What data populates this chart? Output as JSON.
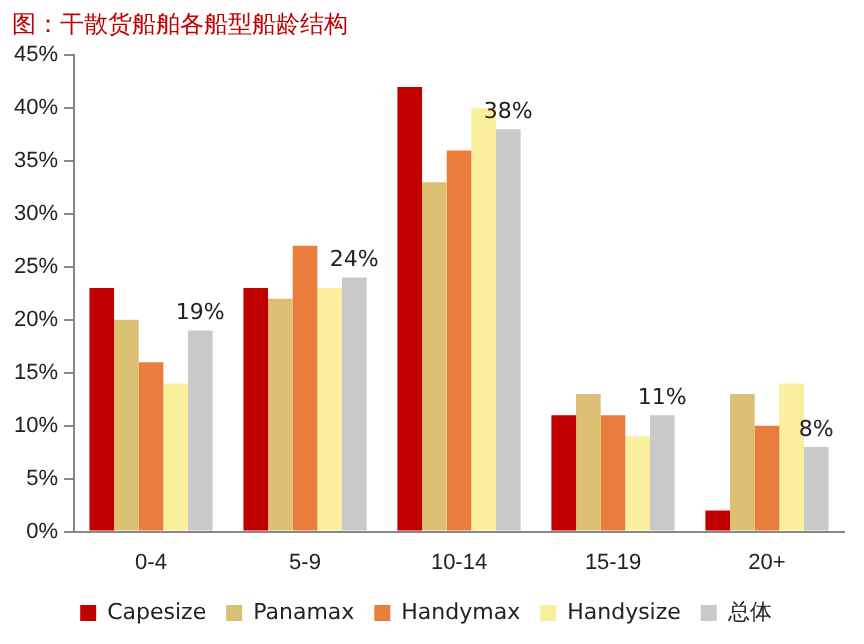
{
  "chart_data": {
    "type": "bar",
    "title": "图：干散货船舶各船型船龄结构",
    "categories": [
      "0-4",
      "5-9",
      "10-14",
      "15-19",
      "20+"
    ],
    "series": [
      {
        "name": "Capesize",
        "color": "#c00000",
        "values": [
          23,
          23,
          42,
          11,
          2
        ]
      },
      {
        "name": "Panamax",
        "color": "#dbbf73",
        "values": [
          20,
          22,
          33,
          13,
          13
        ]
      },
      {
        "name": "Handymax",
        "color": "#ea7d3c",
        "values": [
          16,
          27,
          36,
          11,
          10
        ]
      },
      {
        "name": "Handysize",
        "color": "#f9ef9c",
        "values": [
          14,
          23,
          40,
          9,
          14
        ]
      },
      {
        "name": "总体",
        "color": "#c9c9c9",
        "values": [
          19,
          24,
          38,
          11,
          8
        ],
        "value_labels": [
          "19%",
          "24%",
          "38%",
          "11%",
          "8%"
        ]
      }
    ],
    "ylim": [
      0,
      45
    ],
    "yticks": [
      {
        "value": 0,
        "label": "0%"
      },
      {
        "value": 5,
        "label": "5%"
      },
      {
        "value": 10,
        "label": "10%"
      },
      {
        "value": 15,
        "label": "15%"
      },
      {
        "value": 20,
        "label": "20%"
      },
      {
        "value": 25,
        "label": "25%"
      },
      {
        "value": 30,
        "label": "30%"
      },
      {
        "value": 35,
        "label": "35%"
      },
      {
        "value": 40,
        "label": "40%"
      },
      {
        "value": 45,
        "label": "45%"
      }
    ],
    "grid": false,
    "legend": "bottom"
  }
}
